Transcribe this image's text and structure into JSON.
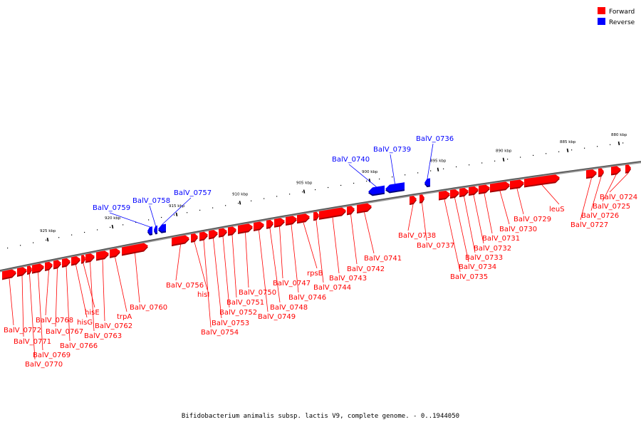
{
  "colors": {
    "forward": "#ff0000",
    "reverse": "#0000ff"
  },
  "legend": {
    "forward_label": "Forward",
    "reverse_label": "Reverse"
  },
  "caption": "Bifidobacterium animalis subsp. lactis V9, complete genome. - 0..1944050",
  "ticks": [
    {
      "kbp": 880,
      "label": "880 kbp"
    },
    {
      "kbp": 885,
      "label": "885 kbp"
    },
    {
      "kbp": 890,
      "label": "890 kbp"
    },
    {
      "kbp": 895,
      "label": "895 kbp"
    },
    {
      "kbp": 900,
      "label": "900 kbp"
    },
    {
      "kbp": 905,
      "label": "905 kbp"
    },
    {
      "kbp": 910,
      "label": "910 kbp"
    },
    {
      "kbp": 915,
      "label": "915 kbp"
    },
    {
      "kbp": 920,
      "label": "920 kbp"
    },
    {
      "kbp": 925,
      "label": "925 kbp"
    }
  ],
  "genes": [
    {
      "name": "BalV_0724",
      "strand": "forward"
    },
    {
      "name": "BalV_0725",
      "strand": "forward"
    },
    {
      "name": "BalV_0726",
      "strand": "forward"
    },
    {
      "name": "BalV_0727",
      "strand": "forward"
    },
    {
      "name": "leuS",
      "strand": "forward"
    },
    {
      "name": "BalV_0729",
      "strand": "forward"
    },
    {
      "name": "BalV_0730",
      "strand": "forward"
    },
    {
      "name": "BalV_0731",
      "strand": "forward"
    },
    {
      "name": "BalV_0732",
      "strand": "forward"
    },
    {
      "name": "BalV_0733",
      "strand": "forward"
    },
    {
      "name": "BalV_0734",
      "strand": "forward"
    },
    {
      "name": "BalV_0735",
      "strand": "forward"
    },
    {
      "name": "BalV_0736",
      "strand": "reverse"
    },
    {
      "name": "BalV_0737",
      "strand": "forward"
    },
    {
      "name": "BalV_0738",
      "strand": "forward"
    },
    {
      "name": "BalV_0739",
      "strand": "reverse"
    },
    {
      "name": "BalV_0740",
      "strand": "reverse"
    },
    {
      "name": "BalV_0741",
      "strand": "forward"
    },
    {
      "name": "BalV_0742",
      "strand": "forward"
    },
    {
      "name": "BalV_0743",
      "strand": "forward"
    },
    {
      "name": "BalV_0744",
      "strand": "forward"
    },
    {
      "name": "rpsB",
      "strand": "forward"
    },
    {
      "name": "BalV_0746",
      "strand": "forward"
    },
    {
      "name": "BalV_0747",
      "strand": "forward"
    },
    {
      "name": "BalV_0748",
      "strand": "forward"
    },
    {
      "name": "BalV_0749",
      "strand": "forward"
    },
    {
      "name": "BalV_0750",
      "strand": "forward"
    },
    {
      "name": "BalV_0751",
      "strand": "forward"
    },
    {
      "name": "BalV_0752",
      "strand": "forward"
    },
    {
      "name": "BalV_0753",
      "strand": "forward"
    },
    {
      "name": "BalV_0754",
      "strand": "forward"
    },
    {
      "name": "hisI",
      "strand": "forward"
    },
    {
      "name": "BalV_0756",
      "strand": "forward"
    },
    {
      "name": "BalV_0757",
      "strand": "reverse"
    },
    {
      "name": "BalV_0758",
      "strand": "reverse"
    },
    {
      "name": "BalV_0759",
      "strand": "reverse"
    },
    {
      "name": "BalV_0760",
      "strand": "forward"
    },
    {
      "name": "trpA",
      "strand": "forward"
    },
    {
      "name": "BalV_0762",
      "strand": "forward"
    },
    {
      "name": "BalV_0763",
      "strand": "forward"
    },
    {
      "name": "hisE",
      "strand": "forward"
    },
    {
      "name": "hisG",
      "strand": "forward"
    },
    {
      "name": "BalV_0766",
      "strand": "forward"
    },
    {
      "name": "BalV_0767",
      "strand": "forward"
    },
    {
      "name": "BalV_0768",
      "strand": "forward"
    },
    {
      "name": "BalV_0769",
      "strand": "forward"
    },
    {
      "name": "BalV_0770",
      "strand": "forward"
    },
    {
      "name": "BalV_0771",
      "strand": "forward"
    },
    {
      "name": "BalV_0772",
      "strand": "forward"
    }
  ]
}
